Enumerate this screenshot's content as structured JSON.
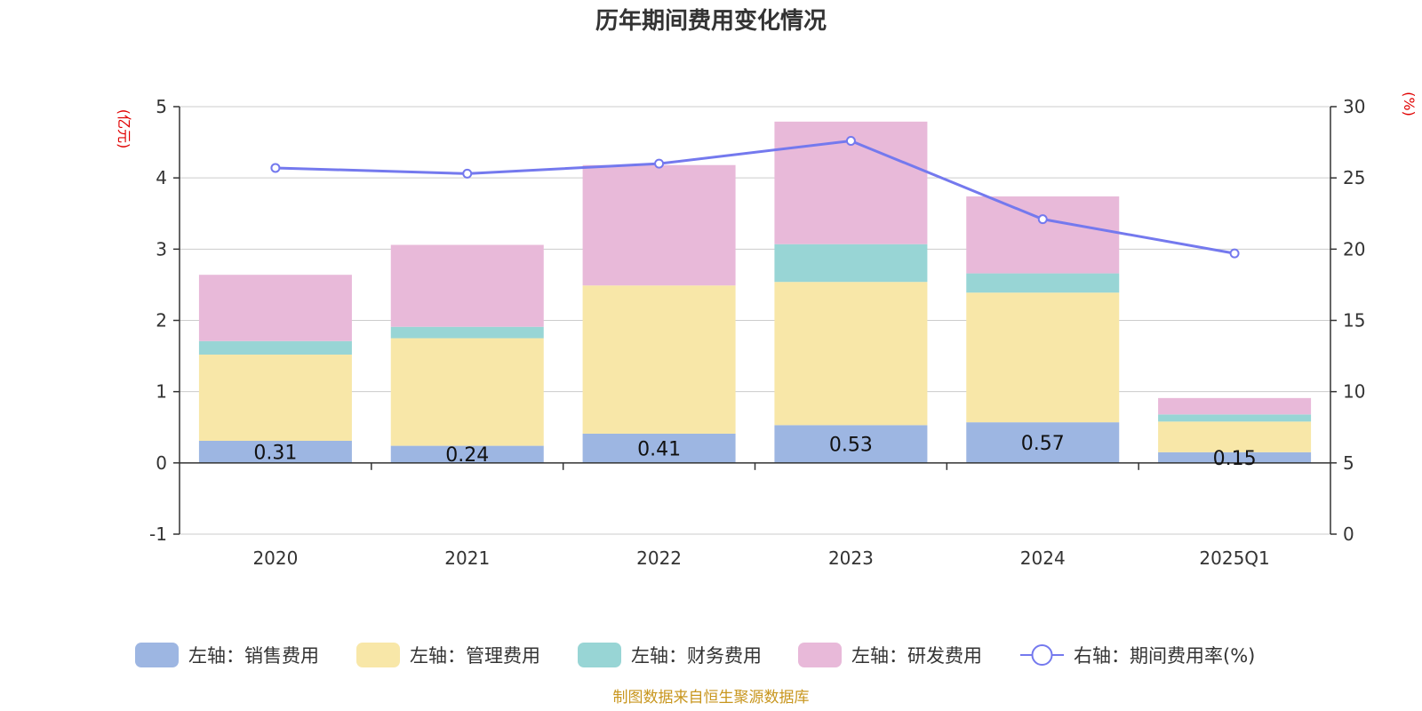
{
  "chart_data": {
    "type": "bar",
    "subtype": "stacked-bar-with-line",
    "title": "历年期间费用变化情况",
    "categories": [
      "2020",
      "2021",
      "2022",
      "2023",
      "2024",
      "2025Q1"
    ],
    "left_axis": {
      "unit_label": "(亿元)",
      "ylim": [
        -1,
        5
      ],
      "ticks": [
        "5",
        "4",
        "3",
        "2",
        "1",
        "0",
        "-1"
      ]
    },
    "right_axis": {
      "unit_label": "(%)",
      "ylim": [
        0,
        30
      ],
      "ticks": [
        "30",
        "25",
        "20",
        "15",
        "10",
        "5",
        "0"
      ]
    },
    "series": [
      {
        "name": "左轴：销售费用",
        "axis": "left",
        "kind": "bar",
        "color": "#9db6e2",
        "values": [
          0.31,
          0.24,
          0.41,
          0.53,
          0.57,
          0.15
        ],
        "labels": [
          "0.31",
          "0.24",
          "0.41",
          "0.53",
          "0.57",
          "0.15"
        ]
      },
      {
        "name": "左轴：管理费用",
        "axis": "left",
        "kind": "bar",
        "color": "#f8e7a8",
        "values": [
          1.21,
          1.51,
          2.08,
          2.01,
          1.82,
          0.43
        ]
      },
      {
        "name": "左轴：财务费用",
        "axis": "left",
        "kind": "bar",
        "color": "#98d5d5",
        "values": [
          0.19,
          0.16,
          0.0,
          0.53,
          0.27,
          0.1
        ]
      },
      {
        "name": "左轴：研发费用",
        "axis": "left",
        "kind": "bar",
        "color": "#e8b9d9",
        "values": [
          0.93,
          1.15,
          1.69,
          1.72,
          1.08,
          0.23
        ]
      },
      {
        "name": "右轴：期间费用率(%)",
        "axis": "right",
        "kind": "line",
        "color": "#7479ee",
        "values": [
          25.7,
          25.3,
          26.0,
          27.6,
          22.1,
          19.7
        ]
      }
    ],
    "legend_position": "bottom",
    "grid": true
  },
  "source": "制图数据来自恒生聚源数据库"
}
